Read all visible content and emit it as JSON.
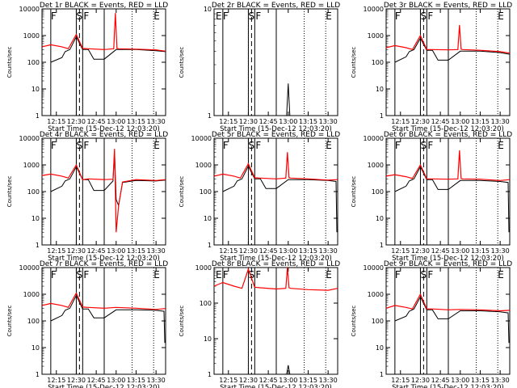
{
  "figure": {
    "xlabel": "Start Time (15-Dec-12 12:03:20)",
    "ylabel": "Counts/sec"
  },
  "chart_data": [
    {
      "type": "line",
      "title": "Det 1r BLACK = Events, RED = LLD",
      "xlabel": "Start Time (15-Dec-12 12:03:20)",
      "ylabel": "Counts/sec",
      "ylim": [
        1,
        10000
      ],
      "ylog": true,
      "xticks": [
        "12:15",
        "12:30",
        "12:45",
        "13:00",
        "13:15",
        "13:30"
      ],
      "yticks": [
        "1",
        "10",
        "100",
        "1000",
        "10000"
      ],
      "markers": [
        "F",
        "S",
        "F",
        "E"
      ],
      "series": [
        {
          "name": "Events",
          "color": "#000000",
          "x": [
            12.07,
            12.18,
            12.32,
            12.36,
            12.42,
            12.5,
            12.58,
            12.6,
            12.65,
            12.72,
            12.85,
            13.0,
            13.25,
            13.5,
            13.62
          ],
          "y": [
            null,
            100,
            150,
            250,
            300,
            900,
            300,
            300,
            300,
            130,
            130,
            300,
            300,
            270,
            250
          ]
        },
        {
          "name": "LLD",
          "color": "#ff0000",
          "x": [
            12.07,
            12.18,
            12.32,
            12.4,
            12.5,
            12.58,
            12.65,
            12.85,
            12.97,
            12.99,
            13.01,
            13.03,
            13.25,
            13.5,
            13.62
          ],
          "y": [
            380,
            450,
            380,
            320,
            1100,
            330,
            320,
            300,
            320,
            7000,
            330,
            320,
            310,
            290,
            260
          ]
        }
      ]
    },
    {
      "type": "line",
      "title": "Det 2r BLACK = Events, RED = LLD",
      "xlabel": "Start Time (15-Dec-12 12:03:20)",
      "ylabel": "Counts/sec",
      "ylim": [
        1,
        10
      ],
      "ylog": true,
      "xticks": [
        "12:15",
        "12:30",
        "12:45",
        "13:00",
        "13:15",
        "13:30"
      ],
      "yticks": [
        "1",
        "10"
      ],
      "markers": [
        "E",
        "F",
        "S",
        "F",
        "E"
      ],
      "series": [
        {
          "name": "Events",
          "color": "#000000",
          "x": [
            12.98,
            13.0,
            13.02
          ],
          "y": [
            1,
            2,
            1
          ]
        }
      ]
    },
    {
      "type": "line",
      "title": "Det 3r BLACK = Events, RED = LLD",
      "xlabel": "Start Time (15-Dec-12 12:03:20)",
      "ylabel": "Counts/sec",
      "ylim": [
        1,
        10000
      ],
      "ylog": true,
      "xticks": [
        "12:15",
        "12:30",
        "12:45",
        "13:00",
        "13:15",
        "13:30"
      ],
      "yticks": [
        "1",
        "10",
        "100",
        "1000",
        "10000"
      ],
      "markers": [
        "F",
        "S",
        "F",
        "E"
      ],
      "series": [
        {
          "name": "Events",
          "color": "#000000",
          "x": [
            12.07,
            12.18,
            12.32,
            12.36,
            12.42,
            12.5,
            12.58,
            12.6,
            12.65,
            12.72,
            12.85,
            13.0,
            13.25,
            13.5,
            13.62
          ],
          "y": [
            null,
            100,
            160,
            250,
            300,
            800,
            280,
            280,
            280,
            120,
            120,
            260,
            260,
            230,
            200
          ]
        },
        {
          "name": "LLD",
          "color": "#ff0000",
          "x": [
            12.07,
            12.18,
            12.32,
            12.4,
            12.5,
            12.58,
            12.65,
            12.85,
            12.97,
            12.99,
            13.01,
            13.03,
            13.25,
            13.5,
            13.62
          ],
          "y": [
            350,
            420,
            350,
            300,
            1000,
            300,
            300,
            290,
            300,
            2500,
            310,
            300,
            280,
            250,
            220
          ]
        }
      ]
    },
    {
      "type": "line",
      "title": "Det 4r BLACK = Events, RED = LLD",
      "xlabel": "Start Time (15-Dec-12 12:03:20)",
      "ylabel": "Counts/sec",
      "ylim": [
        1,
        10000
      ],
      "ylog": true,
      "xticks": [
        "12:15",
        "12:30",
        "12:45",
        "13:00",
        "13:15",
        "13:30"
      ],
      "yticks": [
        "1",
        "10",
        "100",
        "1000",
        "10000"
      ],
      "markers": [
        "F",
        "S",
        "F",
        "E"
      ],
      "series": [
        {
          "name": "Events",
          "color": "#000000",
          "x": [
            12.07,
            12.18,
            12.32,
            12.36,
            12.42,
            12.5,
            12.58,
            12.6,
            12.65,
            12.72,
            12.85,
            12.96,
            12.98,
            13.0,
            13.03,
            13.08,
            13.25,
            13.5,
            13.62
          ],
          "y": [
            null,
            100,
            160,
            250,
            300,
            850,
            280,
            280,
            280,
            110,
            110,
            250,
            3000,
            50,
            30,
            220,
            260,
            250,
            270
          ]
        },
        {
          "name": "LLD",
          "color": "#ff0000",
          "x": [
            12.07,
            12.18,
            12.32,
            12.4,
            12.5,
            12.58,
            12.65,
            12.85,
            12.96,
            12.98,
            13.0,
            13.03,
            13.08,
            13.25,
            13.5,
            13.62
          ],
          "y": [
            400,
            450,
            380,
            320,
            1000,
            280,
            300,
            280,
            290,
            4000,
            3,
            30,
            230,
            280,
            260,
            280
          ]
        }
      ]
    },
    {
      "type": "line",
      "title": "Det 5r BLACK = Events, RED = LLD",
      "xlabel": "Start Time (15-Dec-12 12:03:20)",
      "ylabel": "Counts/sec",
      "ylim": [
        1,
        10000
      ],
      "ylog": true,
      "xticks": [
        "12:15",
        "12:30",
        "12:45",
        "13:00",
        "13:15",
        "13:30"
      ],
      "yticks": [
        "1",
        "10",
        "100",
        "1000",
        "10000"
      ],
      "markers": [
        "F",
        "S",
        "F",
        "E"
      ],
      "series": [
        {
          "name": "Events",
          "color": "#000000",
          "x": [
            12.07,
            12.18,
            12.32,
            12.36,
            12.42,
            12.5,
            12.58,
            12.6,
            12.65,
            12.72,
            12.85,
            13.0,
            13.25,
            13.5,
            13.6,
            13.61
          ],
          "y": [
            null,
            100,
            160,
            250,
            300,
            900,
            300,
            300,
            300,
            130,
            130,
            280,
            280,
            260,
            240,
            3
          ]
        },
        {
          "name": "LLD",
          "color": "#ff0000",
          "x": [
            12.07,
            12.18,
            12.32,
            12.4,
            12.5,
            12.58,
            12.65,
            12.85,
            12.97,
            12.99,
            13.01,
            13.03,
            13.25,
            13.5,
            13.62
          ],
          "y": [
            380,
            450,
            380,
            320,
            1100,
            330,
            320,
            300,
            320,
            3000,
            330,
            320,
            300,
            270,
            280
          ]
        }
      ]
    },
    {
      "type": "line",
      "title": "Det 6r BLACK = Events, RED = LLD",
      "xlabel": "Start Time (15-Dec-12 12:03:20)",
      "ylabel": "Counts/sec",
      "ylim": [
        1,
        10000
      ],
      "ylog": true,
      "xticks": [
        "12:15",
        "12:30",
        "12:45",
        "13:00",
        "13:15",
        "13:30"
      ],
      "yticks": [
        "1",
        "10",
        "100",
        "1000",
        "10000"
      ],
      "markers": [
        "F",
        "S",
        "F",
        "E"
      ],
      "series": [
        {
          "name": "Events",
          "color": "#000000",
          "x": [
            12.07,
            12.18,
            12.32,
            12.36,
            12.42,
            12.5,
            12.58,
            12.6,
            12.65,
            12.72,
            12.85,
            13.0,
            13.25,
            13.5,
            13.6,
            13.61
          ],
          "y": [
            null,
            100,
            160,
            250,
            300,
            850,
            280,
            280,
            280,
            120,
            120,
            260,
            260,
            240,
            220,
            3
          ]
        },
        {
          "name": "LLD",
          "color": "#ff0000",
          "x": [
            12.07,
            12.18,
            12.32,
            12.4,
            12.5,
            12.58,
            12.65,
            12.85,
            12.97,
            12.99,
            13.01,
            13.03,
            13.25,
            13.5,
            13.62
          ],
          "y": [
            380,
            430,
            360,
            310,
            1000,
            300,
            300,
            290,
            300,
            3500,
            310,
            300,
            290,
            260,
            280
          ]
        }
      ]
    },
    {
      "type": "line",
      "title": "Det 7r BLACK = Events, RED = LLD",
      "xlabel": "Start Time (15-Dec-12 12:03:20)",
      "ylabel": "Counts/sec",
      "ylim": [
        1,
        10000
      ],
      "ylog": true,
      "xticks": [
        "12:15",
        "12:30",
        "12:45",
        "13:00",
        "13:15",
        "13:30"
      ],
      "yticks": [
        "1",
        "10",
        "100",
        "1000",
        "10000"
      ],
      "markers": [
        "F",
        "S",
        "F",
        "E"
      ],
      "series": [
        {
          "name": "Events",
          "color": "#000000",
          "x": [
            12.07,
            12.18,
            12.32,
            12.36,
            12.42,
            12.5,
            12.58,
            12.6,
            12.65,
            12.72,
            12.85,
            13.0,
            13.25,
            13.5,
            13.6,
            13.61
          ],
          "y": [
            null,
            100,
            160,
            250,
            300,
            900,
            280,
            280,
            280,
            130,
            130,
            260,
            260,
            250,
            230,
            15
          ]
        },
        {
          "name": "LLD",
          "color": "#ff0000",
          "x": [
            12.07,
            12.18,
            12.32,
            12.4,
            12.5,
            12.58,
            12.65,
            12.85,
            13.0,
            13.25,
            13.5,
            13.62
          ],
          "y": [
            380,
            450,
            380,
            320,
            1100,
            330,
            320,
            300,
            320,
            300,
            270,
            290
          ]
        }
      ]
    },
    {
      "type": "line",
      "title": "Det 8r BLACK = Events, RED = LLD",
      "xlabel": "Start Time (15-Dec-12 12:03:20)",
      "ylabel": "Counts/sec",
      "ylim": [
        1,
        1000
      ],
      "ylog": true,
      "xticks": [
        "12:15",
        "12:30",
        "12:45",
        "13:00",
        "13:15",
        "13:30"
      ],
      "yticks": [
        "1",
        "10",
        "100",
        "1000"
      ],
      "markers": [
        "E",
        "F",
        "S",
        "F",
        "E"
      ],
      "series": [
        {
          "name": "Events",
          "color": "#000000",
          "x": [
            12.98,
            13.0,
            13.02
          ],
          "y": [
            1,
            1.8,
            1
          ]
        },
        {
          "name": "LLD",
          "color": "#ff0000",
          "x": [
            12.07,
            12.18,
            12.32,
            12.42,
            12.5,
            12.58,
            12.65,
            12.85,
            12.97,
            12.99,
            13.01,
            13.03,
            13.25,
            13.5,
            13.62
          ],
          "y": [
            300,
            380,
            300,
            260,
            900,
            280,
            270,
            250,
            260,
            1000,
            270,
            260,
            240,
            230,
            260
          ]
        }
      ]
    },
    {
      "type": "line",
      "title": "Det 9r BLACK = Events, RED = LLD",
      "xlabel": "Start Time (15-Dec-12 12:03:20)",
      "ylabel": "Counts/sec",
      "ylim": [
        1,
        10000
      ],
      "ylog": true,
      "xticks": [
        "12:15",
        "12:30",
        "12:45",
        "13:00",
        "13:15",
        "13:30"
      ],
      "yticks": [
        "1",
        "10",
        "100",
        "1000",
        "10000"
      ],
      "markers": [
        "F",
        "S",
        "F",
        "E"
      ],
      "series": [
        {
          "name": "Events",
          "color": "#000000",
          "x": [
            12.07,
            12.18,
            12.32,
            12.36,
            12.42,
            12.5,
            12.58,
            12.6,
            12.65,
            12.72,
            12.85,
            13.0,
            13.25,
            13.5,
            13.6,
            13.61
          ],
          "y": [
            null,
            100,
            150,
            230,
            280,
            800,
            260,
            260,
            260,
            120,
            120,
            240,
            240,
            220,
            200,
            15
          ]
        },
        {
          "name": "LLD",
          "color": "#ff0000",
          "x": [
            12.07,
            12.18,
            12.32,
            12.4,
            12.5,
            12.58,
            12.65,
            12.85,
            13.0,
            13.25,
            13.5,
            13.62
          ],
          "y": [
            300,
            380,
            320,
            280,
            1000,
            280,
            280,
            260,
            270,
            260,
            240,
            250
          ]
        }
      ]
    }
  ]
}
